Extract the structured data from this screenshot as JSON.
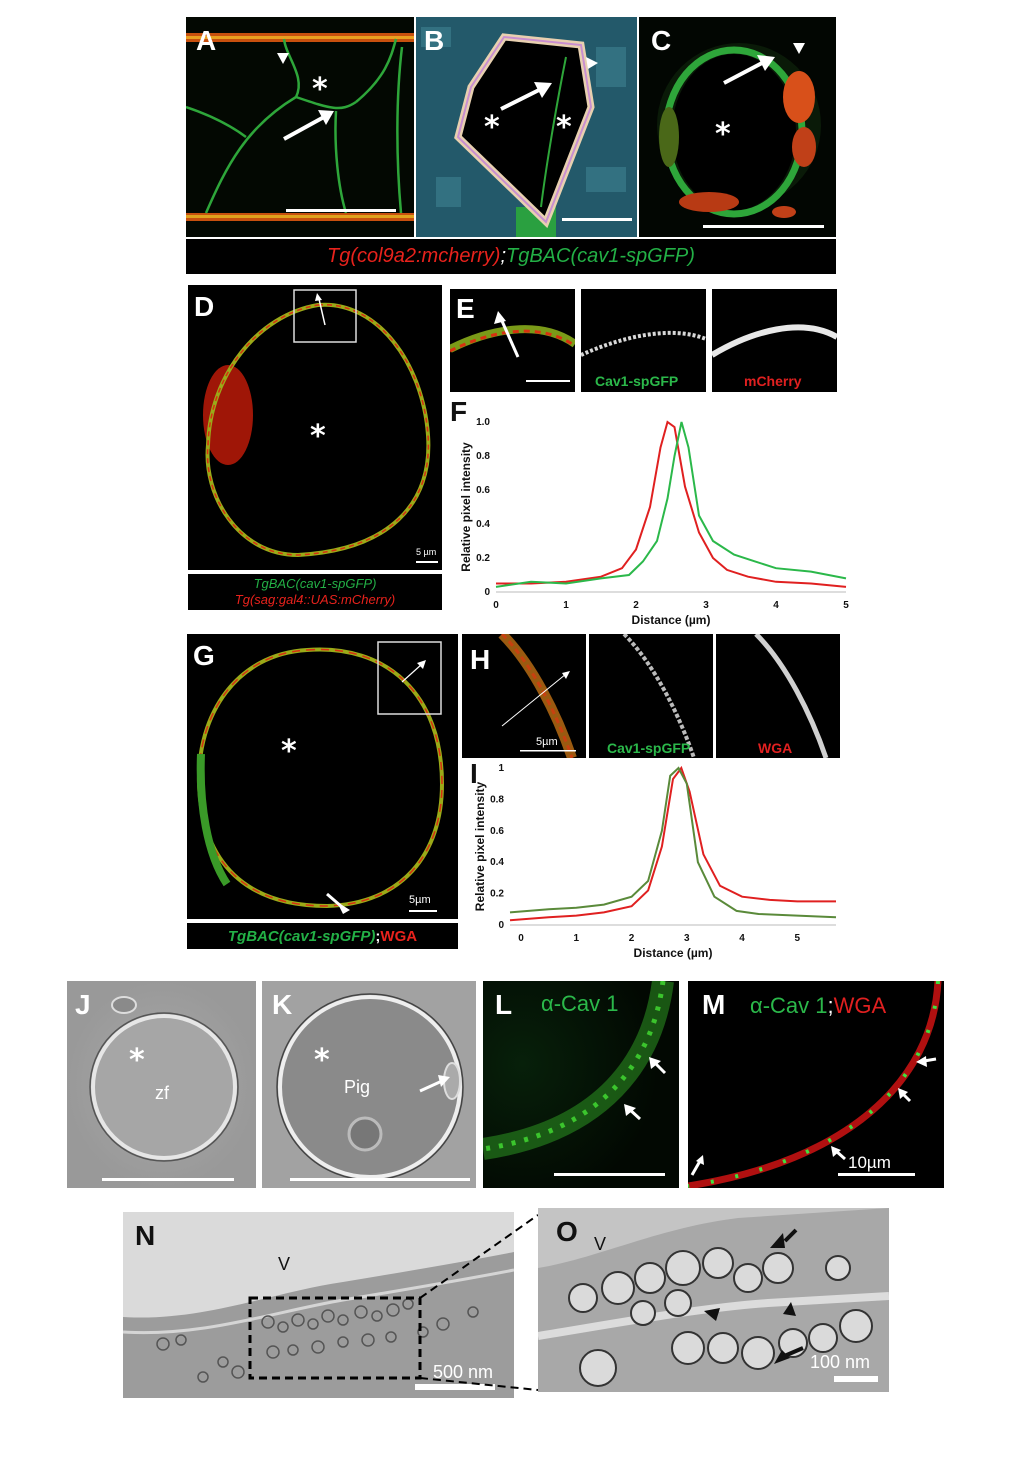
{
  "panels": {
    "A": "A",
    "B": "B",
    "C": "C",
    "D": "D",
    "E": "E",
    "F": "F",
    "G": "G",
    "H": "H",
    "I": "I",
    "J": "J",
    "K": "K",
    "L": "L",
    "M": "M",
    "N": "N",
    "O": "O"
  },
  "asterisk": "*",
  "abc_caption": {
    "red": "Tg(col9a2:mcherry)",
    "sep": ";",
    "green": "TgBAC(cav1-spGFP)"
  },
  "d_caption": {
    "green": "TgBAC(cav1-spGFP)",
    "red": "Tg(sag:gal4::UAS:mCherry)"
  },
  "g_caption": {
    "green": "TgBAC(cav1-spGFP)",
    "sep": ";",
    "red": "WGA"
  },
  "e_labels": {
    "green": "Cav1-spGFP",
    "red": "mCherry"
  },
  "h_labels": {
    "green": "Cav1-spGFP",
    "red": "WGA"
  },
  "scale_labels": {
    "d": "5 µm",
    "g": "5µm",
    "h": "5µm",
    "m": "10µm",
    "n": "500 nm",
    "o": "100 nm"
  },
  "jk_labels": {
    "zf": "zf",
    "pig": "Pig"
  },
  "l_label": "α-Cav 1",
  "m_label": {
    "green": "α-Cav 1",
    "sep": ";",
    "red": "WGA"
  },
  "em_labels": {
    "n_v": "V",
    "o_v": "V"
  },
  "colors": {
    "green": "#2bb84a",
    "red": "#e02020",
    "caption_red": "#e8221c",
    "caption_green": "#23b046"
  },
  "chart_data": [
    {
      "type": "line",
      "panel": "F",
      "xlabel": "Distance (µm)",
      "ylabel": "Relative pixel intensity",
      "xlim": [
        0,
        5
      ],
      "ylim": [
        0,
        1.0
      ],
      "xticks": [
        "0",
        "1",
        "2",
        "3",
        "4",
        "5"
      ],
      "yticks": [
        "0",
        "0.2",
        "0.4",
        "0.6",
        "0.8",
        "1.0"
      ],
      "series": [
        {
          "color": "#e02020",
          "x": [
            0,
            0.5,
            1.0,
            1.5,
            1.8,
            2.0,
            2.2,
            2.35,
            2.45,
            2.55,
            2.7,
            2.9,
            3.1,
            3.3,
            3.6,
            4.0,
            4.5,
            5.0
          ],
          "y": [
            0.05,
            0.05,
            0.06,
            0.09,
            0.14,
            0.25,
            0.5,
            0.85,
            1.0,
            0.97,
            0.62,
            0.35,
            0.2,
            0.13,
            0.09,
            0.06,
            0.05,
            0.03
          ]
        },
        {
          "color": "#2bb84a",
          "x": [
            0,
            0.5,
            1.0,
            1.5,
            1.9,
            2.1,
            2.3,
            2.45,
            2.55,
            2.65,
            2.75,
            2.9,
            3.1,
            3.4,
            3.7,
            4.0,
            4.5,
            5.0
          ],
          "y": [
            0.03,
            0.06,
            0.05,
            0.08,
            0.1,
            0.18,
            0.3,
            0.55,
            0.8,
            1.0,
            0.85,
            0.45,
            0.3,
            0.22,
            0.18,
            0.14,
            0.12,
            0.08
          ]
        }
      ]
    },
    {
      "type": "line",
      "panel": "I",
      "xlabel": "Distance (µm)",
      "ylabel": "Relative pixel intensity",
      "xlim": [
        -0.2,
        5.7
      ],
      "ylim": [
        0,
        1
      ],
      "xticks": [
        "0",
        "1",
        "2",
        "3",
        "4",
        "5"
      ],
      "yticks": [
        "0",
        "0.2",
        "0.4",
        "0.6",
        "0.8",
        "1"
      ],
      "series": [
        {
          "color": "#e02020",
          "x": [
            -0.2,
            0.5,
            1.0,
            1.5,
            2.0,
            2.3,
            2.55,
            2.75,
            2.9,
            3.05,
            3.3,
            3.6,
            4.0,
            4.5,
            5.0,
            5.7
          ],
          "y": [
            0.03,
            0.05,
            0.06,
            0.08,
            0.12,
            0.22,
            0.5,
            0.93,
            1.0,
            0.85,
            0.45,
            0.25,
            0.18,
            0.16,
            0.15,
            0.15
          ]
        },
        {
          "color": "#5a8a3a",
          "x": [
            -0.2,
            0.5,
            1.0,
            1.5,
            2.0,
            2.3,
            2.55,
            2.7,
            2.85,
            3.0,
            3.2,
            3.5,
            3.9,
            4.3,
            5.0,
            5.7
          ],
          "y": [
            0.08,
            0.1,
            0.11,
            0.13,
            0.18,
            0.28,
            0.6,
            0.95,
            1.0,
            0.9,
            0.4,
            0.18,
            0.09,
            0.07,
            0.06,
            0.05
          ]
        }
      ]
    }
  ]
}
